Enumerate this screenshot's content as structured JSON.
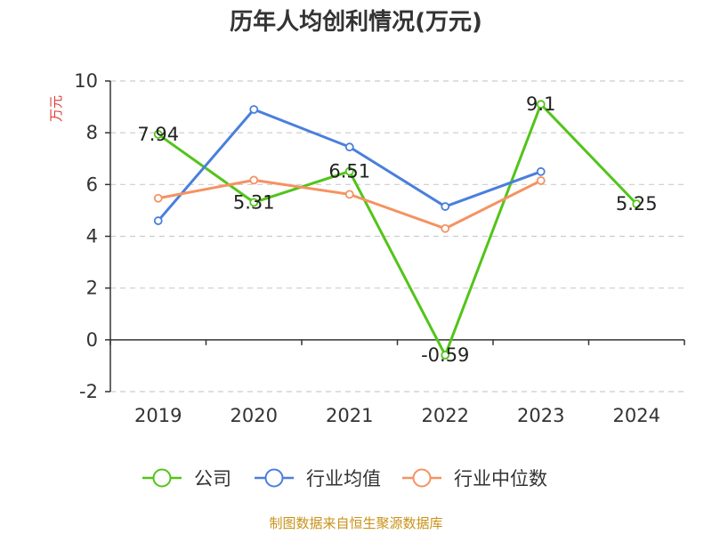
{
  "chart_data": {
    "type": "line",
    "title": "历年人均创利情况(万元)",
    "ylabel": "万元",
    "xlabel": "",
    "categories": [
      "2019",
      "2020",
      "2021",
      "2022",
      "2023",
      "2024"
    ],
    "ylim": [
      -2,
      10
    ],
    "yticks": [
      -2,
      0,
      2,
      4,
      6,
      8,
      10
    ],
    "grid": true,
    "legend_position": "bottom",
    "series": [
      {
        "name": "公司",
        "color": "#52c41a",
        "values": [
          7.94,
          5.31,
          6.51,
          -0.59,
          9.1,
          5.25
        ],
        "labels": [
          "7.94",
          "5.31",
          "6.51",
          "-0.59",
          "9.1",
          "5.25"
        ]
      },
      {
        "name": "行业均值",
        "color": "#4a7fdc",
        "values": [
          4.6,
          8.9,
          7.45,
          5.15,
          6.5,
          null
        ]
      },
      {
        "name": "行业中位数",
        "color": "#f59262",
        "values": [
          5.47,
          6.17,
          5.62,
          4.3,
          6.15,
          null
        ]
      }
    ]
  },
  "source": "制图数据来自恒生聚源数据库"
}
